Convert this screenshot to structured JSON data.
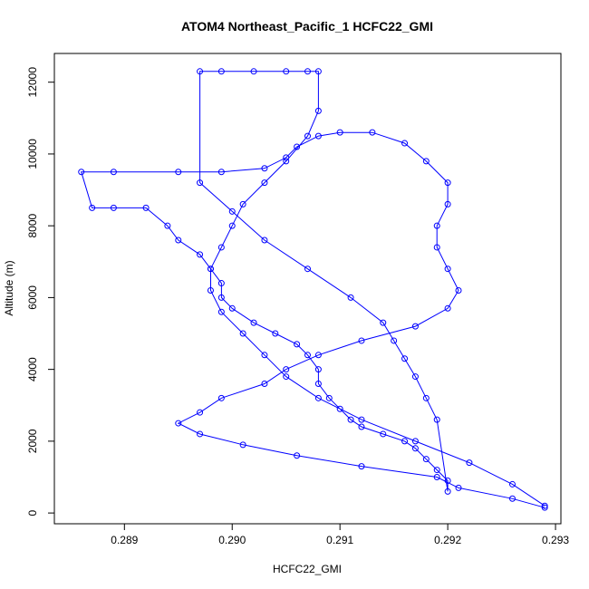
{
  "chart_data": {
    "type": "scatter",
    "title": "ATOM4 Northeast_Pacific_1 HCFC22_GMI",
    "xlabel": "HCFC22_GMI",
    "ylabel": "Altitude (m)",
    "xlim": [
      0.28835,
      0.29305
    ],
    "ylim": [
      -300,
      12800
    ],
    "x_ticks": [
      0.289,
      0.29,
      0.291,
      0.292,
      0.293
    ],
    "x_tick_labels": [
      "0.289",
      "0.290",
      "0.291",
      "0.292",
      "0.293"
    ],
    "y_ticks": [
      0,
      2000,
      4000,
      6000,
      8000,
      10000,
      12000
    ],
    "y_tick_labels": [
      "0",
      "2000",
      "4000",
      "6000",
      "8000",
      "10000",
      "12000"
    ],
    "grid": false,
    "legend": "none",
    "line_color": "#0000ff",
    "marker": "open-circle",
    "series": [
      {
        "x": [
          0.2929,
          0.2926,
          0.2921,
          0.2919,
          0.2912,
          0.2906,
          0.2901,
          0.2897,
          0.2895,
          0.2897,
          0.2899,
          0.2903,
          0.2905,
          0.2908,
          0.2912,
          0.2917,
          0.292,
          0.2921,
          0.292,
          0.2919,
          0.2919,
          0.292,
          0.292,
          0.2918,
          0.2916,
          0.2913,
          0.291,
          0.2908,
          0.2906,
          0.2905,
          0.2903,
          0.2899,
          0.2895,
          0.2889,
          0.2886,
          0.2887,
          0.2889,
          0.2892,
          0.2894,
          0.2895,
          0.2897,
          0.2898,
          0.2899,
          0.2899,
          0.29,
          0.2902,
          0.2904,
          0.2906,
          0.2907,
          0.2908,
          0.2908,
          0.2909,
          0.291,
          0.2911,
          0.2912,
          0.2914,
          0.2916,
          0.2917,
          0.2918,
          0.2919,
          0.292,
          0.292,
          0.2919,
          0.2918,
          0.2917,
          0.2916,
          0.2915,
          0.2914,
          0.2911,
          0.2907,
          0.2903,
          0.29,
          0.2897,
          0.2897,
          0.2899,
          0.2902,
          0.2905,
          0.2907,
          0.2908,
          0.2908,
          0.2907,
          0.2905,
          0.2903,
          0.2901,
          0.29,
          0.2899,
          0.2898,
          0.2898,
          0.2899,
          0.2901,
          0.2903,
          0.2905,
          0.2908,
          0.2912,
          0.2917,
          0.2922,
          0.2926,
          0.2929
        ],
        "y": [
          150,
          400,
          700,
          1000,
          1300,
          1600,
          1900,
          2200,
          2500,
          2800,
          3200,
          3600,
          4000,
          4400,
          4800,
          5200,
          5700,
          6200,
          6800,
          7400,
          8000,
          8600,
          9200,
          9800,
          10300,
          10600,
          10600,
          10500,
          10200,
          9900,
          9600,
          9500,
          9500,
          9500,
          9500,
          8500,
          8500,
          8500,
          8000,
          7600,
          7200,
          6800,
          6400,
          6000,
          5700,
          5300,
          5000,
          4700,
          4400,
          4000,
          3600,
          3200,
          2900,
          2600,
          2400,
          2200,
          2000,
          1800,
          1500,
          1200,
          900,
          600,
          2600,
          3200,
          3800,
          4300,
          4800,
          5300,
          6000,
          6800,
          7600,
          8400,
          9200,
          12300,
          12300,
          12300,
          12300,
          12300,
          12300,
          11200,
          10500,
          9800,
          9200,
          8600,
          8000,
          7400,
          6800,
          6200,
          5600,
          5000,
          4400,
          3800,
          3200,
          2600,
          2000,
          1400,
          800,
          200
        ]
      }
    ]
  }
}
